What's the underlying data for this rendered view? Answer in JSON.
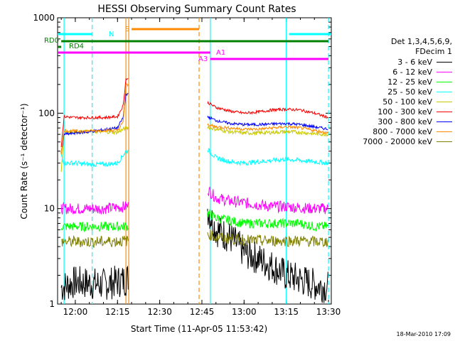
{
  "chart_data": {
    "type": "line",
    "title": "HESSI Observing Summary Count Rates",
    "xlabel": "Start Time (11-Apr-05 11:53:42)",
    "ylabel": "Count Rate (s⁻¹ detector⁻¹)",
    "y_scale": "log",
    "ylim": [
      1,
      1000
    ],
    "xlim": [
      "11:53:42",
      "13:31:00"
    ],
    "x_ticks": [
      "12:00",
      "12:15",
      "12:30",
      "12:45",
      "13:00",
      "13:15",
      "13:30"
    ],
    "y_ticks": [
      "1",
      "10",
      "100",
      "1000"
    ],
    "grid": false,
    "legend_header": [
      "Det 1,3,4,5,6,9,",
      "FDecim 1"
    ],
    "legend_position": "right",
    "series": [
      {
        "name": "3 - 6 keV",
        "color": "#000000",
        "x": [
          "11:55",
          "12:00",
          "12:10",
          "12:18",
          "12:47",
          "12:50",
          "12:55",
          "13:00",
          "13:05",
          "13:10",
          "13:15",
          "13:20",
          "13:25",
          "13:30"
        ],
        "y": [
          1.5,
          1.7,
          1.6,
          1.8,
          10,
          6,
          5,
          3.5,
          3,
          2.5,
          2,
          1.8,
          1.6,
          1.5
        ]
      },
      {
        "name": "6 - 12 keV",
        "color": "#ff00ff",
        "x": [
          "11:55",
          "12:00",
          "12:10",
          "12:18",
          "12:47",
          "12:50",
          "12:55",
          "13:00",
          "13:05",
          "13:10",
          "13:15",
          "13:20",
          "13:25",
          "13:30"
        ],
        "y": [
          10,
          10,
          10,
          10.5,
          16,
          13,
          12,
          11.5,
          11,
          10.5,
          10.5,
          10.2,
          10,
          10
        ]
      },
      {
        "name": "12 - 25 keV",
        "color": "#00ff00",
        "x": [
          "11:55",
          "12:00",
          "12:10",
          "12:18",
          "12:47",
          "12:50",
          "12:55",
          "13:00",
          "13:05",
          "13:10",
          "13:15",
          "13:20",
          "13:25",
          "13:30"
        ],
        "y": [
          6.5,
          6.5,
          6.5,
          6.5,
          9,
          8,
          7.5,
          7,
          7,
          7,
          7,
          7,
          6.5,
          6.5
        ]
      },
      {
        "name": "25 - 50 keV",
        "color": "#00ffff",
        "x": [
          "11:55",
          "11:56",
          "12:00",
          "12:05",
          "12:10",
          "12:15",
          "12:18",
          "12:47",
          "12:50",
          "12:55",
          "13:00",
          "13:05",
          "13:10",
          "13:15",
          "13:20",
          "13:25",
          "13:30"
        ],
        "y": [
          37,
          30,
          30,
          29,
          29,
          30,
          40,
          42,
          34,
          31,
          30,
          31,
          32,
          33,
          32,
          31,
          30
        ]
      },
      {
        "name": "50 - 100 keV",
        "color": "#c8c800",
        "x": [
          "11:55",
          "11:56",
          "12:00",
          "12:05",
          "12:10",
          "12:15",
          "12:18",
          "12:47",
          "12:50",
          "12:55",
          "13:00",
          "13:05",
          "13:10",
          "13:15",
          "13:20",
          "13:25",
          "13:30"
        ],
        "y": [
          24,
          62,
          64,
          64,
          64,
          63,
          70,
          72,
          68,
          64,
          62,
          62,
          63,
          64,
          63,
          61,
          60
        ]
      },
      {
        "name": "100 - 300 keV",
        "color": "#ff0000",
        "x": [
          "11:55",
          "11:56",
          "12:00",
          "12:05",
          "12:10",
          "12:15",
          "12:17",
          "12:18",
          "12:47",
          "12:50",
          "12:55",
          "13:00",
          "13:05",
          "13:10",
          "13:15",
          "13:20",
          "13:25",
          "13:30"
        ],
        "y": [
          45,
          92,
          90,
          90,
          90,
          92,
          120,
          230,
          130,
          115,
          105,
          100,
          103,
          108,
          110,
          108,
          100,
          90
        ]
      },
      {
        "name": "300 - 800 keV",
        "color": "#0000ff",
        "x": [
          "11:55",
          "11:56",
          "12:00",
          "12:05",
          "12:10",
          "12:15",
          "12:17",
          "12:18",
          "12:47",
          "12:50",
          "12:55",
          "13:00",
          "13:05",
          "13:10",
          "13:15",
          "13:20",
          "13:25",
          "13:30"
        ],
        "y": [
          38,
          60,
          62,
          64,
          67,
          70,
          90,
          160,
          92,
          84,
          78,
          76,
          76,
          77,
          78,
          76,
          72,
          68
        ]
      },
      {
        "name": "800 - 7000 keV",
        "color": "#ff8c00",
        "x": [
          "11:55",
          "11:56",
          "12:00",
          "12:05",
          "12:10",
          "12:15",
          "12:17",
          "12:18",
          "12:47",
          "12:50",
          "12:55",
          "13:00",
          "13:05",
          "13:10",
          "13:15",
          "13:20",
          "13:25",
          "13:30"
        ],
        "y": [
          38,
          66,
          65,
          65,
          66,
          66,
          80,
          200,
          76,
          72,
          70,
          68,
          68,
          70,
          72,
          70,
          66,
          62
        ]
      },
      {
        "name": "7000 - 20000 keV",
        "color": "#808000",
        "x": [
          "11:55",
          "12:00",
          "12:10",
          "12:18",
          "12:47",
          "12:50",
          "12:55",
          "13:00",
          "13:05",
          "13:10",
          "13:15",
          "13:20",
          "13:25",
          "13:30"
        ],
        "y": [
          4.5,
          4.5,
          4.5,
          4.6,
          5.5,
          5,
          4.8,
          4.7,
          4.6,
          4.6,
          4.6,
          4.6,
          4.5,
          4.5
        ]
      }
    ],
    "flag_bars": [
      {
        "label": "N",
        "color": "#00ffff",
        "segments": [
          [
            "11:53:42",
            "12:06"
          ],
          [
            "13:16",
            "13:31"
          ]
        ]
      },
      {
        "label": "S",
        "color": "#ff8c00",
        "segments": [
          [
            "12:20",
            "12:44"
          ]
        ]
      },
      {
        "label": "RD0",
        "color": "#008000",
        "segments": [
          [
            "11:55",
            "13:30"
          ]
        ]
      },
      {
        "label": "RD4",
        "color": "#008000",
        "segments": [
          [
            "11:53:42",
            "11:55"
          ]
        ]
      },
      {
        "label": "A1",
        "color": "#ff00ff",
        "segments": [
          [
            "11:53:42",
            "12:48"
          ]
        ]
      },
      {
        "label": "A3",
        "color": "#ff00ff",
        "segments": [
          [
            "12:48",
            "13:30"
          ]
        ]
      }
    ],
    "vertical_markers": [
      {
        "x": "11:56",
        "color": "#00ffff",
        "style": "solid"
      },
      {
        "x": "12:06",
        "color": "#00ffff",
        "style": "dashed"
      },
      {
        "x": "12:18",
        "color": "#ff8c00",
        "style": "solid"
      },
      {
        "x": "12:19",
        "color": "#ff8c00",
        "style": "solid"
      },
      {
        "x": "12:44",
        "color": "#ff8c00",
        "style": "dashed"
      },
      {
        "x": "12:48",
        "color": "#00ffff",
        "style": "solid"
      },
      {
        "x": "13:15",
        "color": "#00ffff",
        "style": "solid"
      },
      {
        "x": "13:30",
        "color": "#00ffff",
        "style": "dashed"
      }
    ],
    "data_gap": [
      "12:19",
      "12:47"
    ]
  },
  "footer_stamp": "18-Mar-2010 17:09"
}
